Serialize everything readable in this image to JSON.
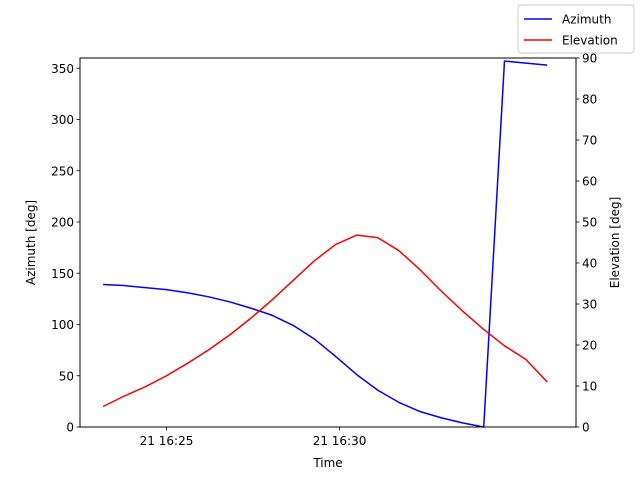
{
  "chart_data": {
    "type": "line",
    "xlabel": "Time",
    "ylabel_left": "Azimuth [deg]",
    "ylabel_right": "Elevation [deg]",
    "xlim": [
      "2000-01-21T16:22:30",
      "2000-01-21T16:36:50"
    ],
    "x_ticks": [
      {
        "t": "2000-01-21T16:25:00",
        "label": "21 16:25"
      },
      {
        "t": "2000-01-21T16:30:00",
        "label": "21 16:30"
      }
    ],
    "ylim_left": [
      0,
      360
    ],
    "yticks_left": [
      0,
      50,
      100,
      150,
      200,
      250,
      300,
      350
    ],
    "ylim_right": [
      0,
      90
    ],
    "yticks_right": [
      0,
      10,
      20,
      30,
      40,
      50,
      60,
      70,
      80,
      90
    ],
    "grid": false,
    "legend": {
      "placement": "top-right",
      "entries": [
        "Azimuth",
        "Elevation"
      ]
    },
    "series": [
      {
        "name": "Azimuth",
        "axis": "left",
        "color": "#0000ff",
        "points": [
          [
            "2000-01-21T16:23:10",
            139
          ],
          [
            "2000-01-21T16:23:46",
            138
          ],
          [
            "2000-01-21T16:24:23",
            136
          ],
          [
            "2000-01-21T16:25:00",
            134
          ],
          [
            "2000-01-21T16:25:36",
            131
          ],
          [
            "2000-01-21T16:26:13",
            127
          ],
          [
            "2000-01-21T16:26:50",
            122
          ],
          [
            "2000-01-21T16:27:26",
            116
          ],
          [
            "2000-01-21T16:28:03",
            109
          ],
          [
            "2000-01-21T16:28:40",
            99
          ],
          [
            "2000-01-21T16:29:16",
            86
          ],
          [
            "2000-01-21T16:29:53",
            69
          ],
          [
            "2000-01-21T16:30:30",
            51
          ],
          [
            "2000-01-21T16:31:06",
            36
          ],
          [
            "2000-01-21T16:31:43",
            24
          ],
          [
            "2000-01-21T16:32:20",
            15
          ],
          [
            "2000-01-21T16:32:56",
            9
          ],
          [
            "2000-01-21T16:33:33",
            4
          ],
          [
            "2000-01-21T16:34:10",
            0
          ],
          [
            "2000-01-21T16:34:46",
            357
          ],
          [
            "2000-01-21T16:35:23",
            355
          ],
          [
            "2000-01-21T16:36:00",
            353
          ]
        ]
      },
      {
        "name": "Elevation",
        "axis": "right",
        "color": "#ff0000",
        "points": [
          [
            "2000-01-21T16:23:10",
            5
          ],
          [
            "2000-01-21T16:23:46",
            7.5
          ],
          [
            "2000-01-21T16:24:23",
            9.8
          ],
          [
            "2000-01-21T16:25:00",
            12.5
          ],
          [
            "2000-01-21T16:25:36",
            15.5
          ],
          [
            "2000-01-21T16:26:13",
            18.8
          ],
          [
            "2000-01-21T16:26:50",
            22.5
          ],
          [
            "2000-01-21T16:27:26",
            26.5
          ],
          [
            "2000-01-21T16:28:03",
            31
          ],
          [
            "2000-01-21T16:28:40",
            35.8
          ],
          [
            "2000-01-21T16:29:16",
            40.5
          ],
          [
            "2000-01-21T16:29:53",
            44.5
          ],
          [
            "2000-01-21T16:30:30",
            46.8
          ],
          [
            "2000-01-21T16:31:06",
            46.2
          ],
          [
            "2000-01-21T16:31:43",
            43
          ],
          [
            "2000-01-21T16:32:20",
            38.3
          ],
          [
            "2000-01-21T16:32:56",
            33.2
          ],
          [
            "2000-01-21T16:33:33",
            28.3
          ],
          [
            "2000-01-21T16:34:10",
            23.8
          ],
          [
            "2000-01-21T16:34:46",
            19.8
          ],
          [
            "2000-01-21T16:35:23",
            16.5
          ],
          [
            "2000-01-21T16:36:00",
            11
          ]
        ]
      }
    ]
  }
}
